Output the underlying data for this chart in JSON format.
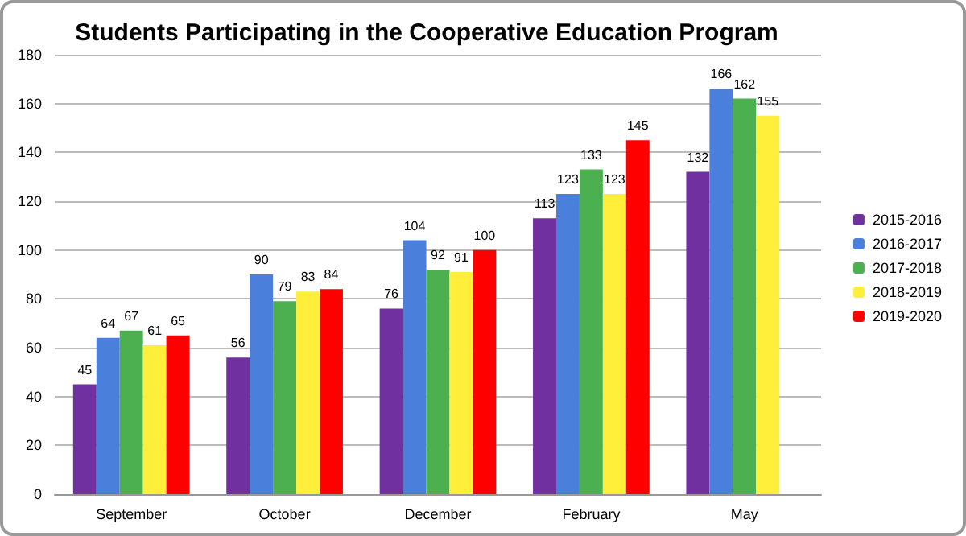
{
  "chart_data": {
    "type": "bar",
    "title": "Students Participating in the Cooperative Education Program",
    "categories": [
      "September",
      "October",
      "December",
      "February",
      "May"
    ],
    "series": [
      {
        "name": "2015-2016",
        "color": "#7030a0",
        "values": [
          45,
          56,
          76,
          113,
          132
        ]
      },
      {
        "name": "2016-2017",
        "color": "#4a7fdc",
        "values": [
          64,
          90,
          104,
          123,
          166
        ]
      },
      {
        "name": "2017-2018",
        "color": "#4cb050",
        "values": [
          67,
          79,
          92,
          133,
          162
        ]
      },
      {
        "name": "2018-2019",
        "color": "#ffee3a",
        "values": [
          61,
          83,
          91,
          123,
          155
        ]
      },
      {
        "name": "2019-2020",
        "color": "#ff0000",
        "values": [
          65,
          84,
          100,
          145,
          null
        ]
      }
    ],
    "ylim": [
      0,
      180
    ],
    "yticks": [
      0,
      20,
      40,
      60,
      80,
      100,
      120,
      140,
      160,
      180
    ],
    "grid": "y",
    "legend": "right",
    "data_labels": true
  }
}
